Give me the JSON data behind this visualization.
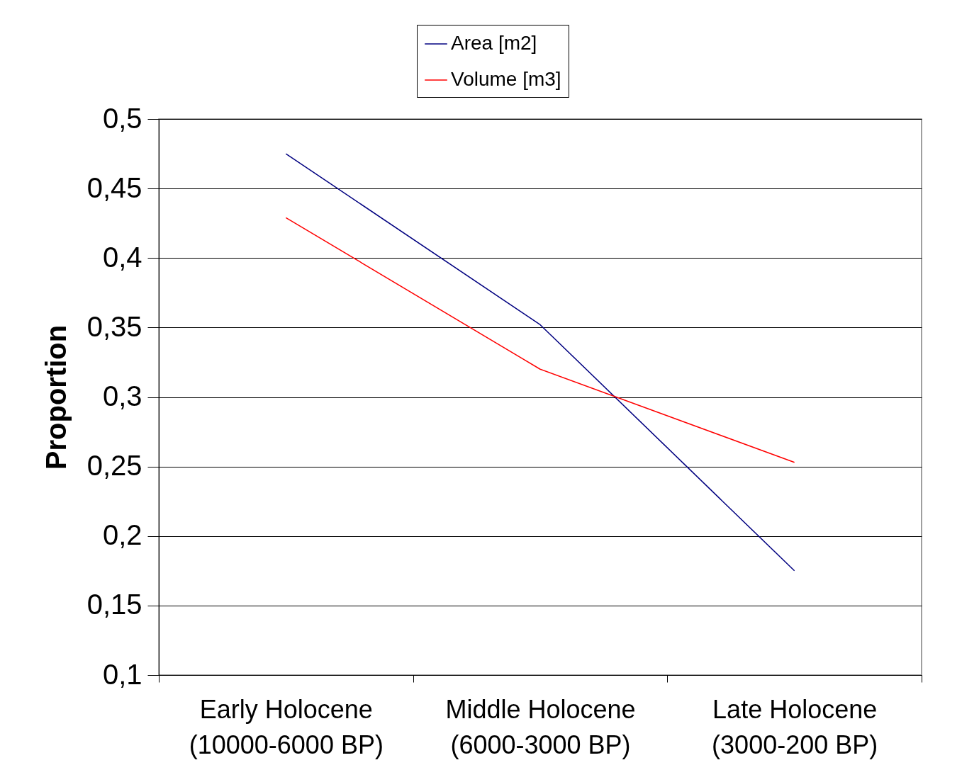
{
  "chart_data": {
    "type": "line",
    "ylabel": "Proportion",
    "categories": [
      "Early Holocene\n(10000-6000 BP)",
      "Middle Holocene\n(6000-3000 BP)",
      "Late Holocene\n(3000-200 BP)"
    ],
    "series": [
      {
        "name": "Area [m2]",
        "color": "#000080",
        "values": [
          0.475,
          0.352,
          0.175
        ]
      },
      {
        "name": "Volume [m3]",
        "color": "#ff0000",
        "values": [
          0.429,
          0.32,
          0.253
        ]
      }
    ],
    "ylim": [
      0.1,
      0.5
    ],
    "yticks": [
      {
        "value": 0.1,
        "label": "0,1"
      },
      {
        "value": 0.15,
        "label": "0,15"
      },
      {
        "value": 0.2,
        "label": "0,2"
      },
      {
        "value": 0.25,
        "label": "0,25"
      },
      {
        "value": 0.3,
        "label": "0,3"
      },
      {
        "value": 0.35,
        "label": "0,35"
      },
      {
        "value": 0.4,
        "label": "0,4"
      },
      {
        "value": 0.45,
        "label": "0,45"
      },
      {
        "value": 0.5,
        "label": "0,5"
      }
    ],
    "grid": "y",
    "legend": "top",
    "marker": "none",
    "line_style": "solid"
  }
}
